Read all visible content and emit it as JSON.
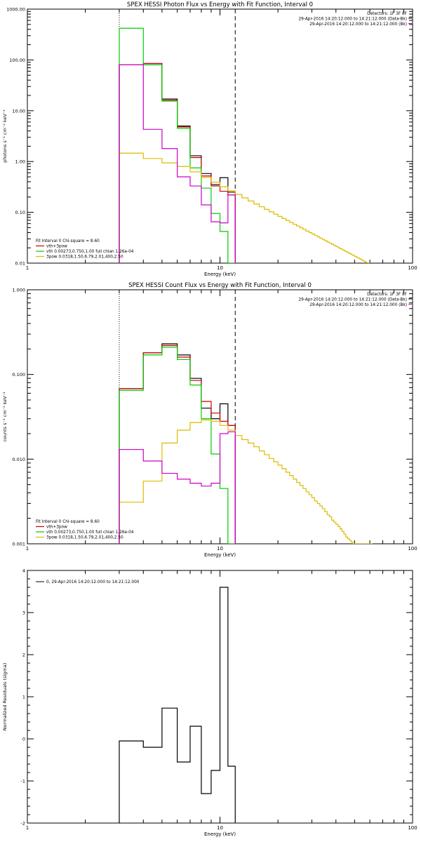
{
  "charts": [
    {
      "type": "line",
      "title": "SPEX HESSI Photon Flux vs Energy with Fit Function, Interval 0",
      "xlabel": "Energy (keV)",
      "ylabel": "photons s⁻¹ cm⁻² keV⁻¹",
      "xscale": "log",
      "yscale": "log",
      "xlim": [
        1,
        100
      ],
      "ylim": [
        0.01,
        1000
      ],
      "xticks": [
        1,
        10,
        100
      ],
      "xtick_labels": [
        "1",
        "10",
        "100"
      ],
      "yticks": [
        0.01,
        0.1,
        1,
        10,
        100,
        1000
      ],
      "ytick_labels": [
        "0.01",
        "0.10",
        "1.00",
        "10.00",
        "100.00",
        "1000.00"
      ],
      "vlines": [
        {
          "x": 3.0,
          "style": "dotted",
          "color": "#000000"
        },
        {
          "x": 12.0,
          "style": "dashed",
          "color": "#000000"
        }
      ],
      "header": [
        "Detectors: 1F 3F 8F",
        "29-Apr-2016 14:20:12.000 to 14:21:12.000 (Data-Bk)",
        "29-Apr-2016 14:20:12.000 to 14:21:12.000 (Bk)"
      ],
      "legend_title": "Fit Interval 0   Chi-square = 8.60",
      "legend": [
        {
          "label": "vth+3pow",
          "color": "#cc0000"
        },
        {
          "label": "vth 0.00273,0.750,1.00  full chian 1.26e-04",
          "color": "#00cc00"
        },
        {
          "label": "3pow 0.0318,1.50,6.79,2.01,400,2.50",
          "color": "#ddbb00"
        }
      ],
      "series": [
        {
          "name": "data",
          "color": "#000000",
          "type": "step",
          "edges": [
            3,
            4,
            5,
            6,
            7,
            8,
            9,
            10,
            11,
            12
          ],
          "values": [
            80,
            85,
            17,
            5,
            1.3,
            0.58,
            0.35,
            0.48,
            0.25
          ]
        },
        {
          "name": "vth+3pow",
          "color": "#cc0000",
          "type": "step",
          "edges": [
            3,
            4,
            5,
            6,
            7,
            8,
            9,
            10,
            11,
            12
          ],
          "values": [
            80,
            85,
            16,
            4.8,
            1.2,
            0.52,
            0.33,
            0.26,
            0.22
          ]
        },
        {
          "name": "vth",
          "color": "#00cc00",
          "type": "step",
          "edges": [
            3,
            4,
            5,
            6,
            7,
            8,
            9,
            10,
            11,
            12
          ],
          "values": [
            420,
            80,
            15.5,
            4.5,
            0.75,
            0.3,
            0.095,
            0.042,
            0.01
          ]
        },
        {
          "name": "3pow",
          "color": "#ddbb00",
          "type": "step",
          "edges": [
            3,
            4,
            5,
            6,
            7,
            8,
            9,
            10,
            11,
            12,
            13,
            14,
            15,
            16,
            17,
            18,
            19,
            20,
            21,
            22,
            23,
            24,
            25,
            26,
            27,
            28,
            29,
            30,
            31,
            32,
            33,
            34,
            35,
            36,
            37,
            38,
            39,
            40,
            41,
            42,
            43,
            44,
            45,
            46,
            47,
            48,
            49,
            50,
            51,
            52,
            53,
            54,
            55,
            56,
            57,
            58,
            59,
            60
          ],
          "power": {
            "start_x": 3,
            "start_y": 1.7,
            "index": 1.5,
            "break_x": 6.79,
            "index2": 2.01,
            "end_x": 60
          },
          "values": []
        },
        {
          "name": "background",
          "color": "#cc00cc",
          "type": "step",
          "edges": [
            3,
            4,
            5,
            6,
            7,
            8,
            9,
            10,
            11,
            12
          ],
          "values": [
            80,
            4.3,
            1.8,
            0.5,
            0.33,
            0.14,
            0.065,
            0.062,
            0.22
          ]
        }
      ]
    },
    {
      "type": "line",
      "title": "SPEX HESSI Count Flux vs Energy with Fit Function, Interval 0",
      "xlabel": "Energy (keV)",
      "ylabel": "counts s⁻¹ cm⁻² keV⁻¹",
      "xscale": "log",
      "yscale": "log",
      "xlim": [
        1,
        100
      ],
      "ylim": [
        0.001,
        1
      ],
      "xticks": [
        1,
        10,
        100
      ],
      "xtick_labels": [
        "1",
        "10",
        "100"
      ],
      "yticks": [
        0.001,
        0.01,
        0.1,
        1
      ],
      "ytick_labels": [
        "0.001",
        "0.010",
        "0.100",
        "1.000"
      ],
      "vlines": [
        {
          "x": 3.0,
          "style": "dotted",
          "color": "#000000"
        },
        {
          "x": 12.0,
          "style": "dashed",
          "color": "#000000"
        }
      ],
      "header": [
        "Detectors: 1F 3F 8F",
        "29-Apr-2016 14:20:12.000 to 14:21:12.000 (Data-Bk)",
        "29-Apr-2016 14:20:12.000 to 14:21:12.000 (Bk)"
      ],
      "legend_title": "Fit Interval 0   Chi-square = 8.60",
      "legend": [
        {
          "label": "vth+3pow",
          "color": "#cc0000"
        },
        {
          "label": "vth 0.00273,0.750,1.00  full chian 1.26e-04",
          "color": "#00cc00"
        },
        {
          "label": "3pow 0.0318,1.50,6.79,2.01,400,2.50",
          "color": "#ddbb00"
        }
      ],
      "series": [
        {
          "name": "data",
          "color": "#000000",
          "type": "step",
          "edges": [
            3,
            4,
            5,
            6,
            7,
            8,
            9,
            10,
            11,
            12
          ],
          "values": [
            0.068,
            0.18,
            0.23,
            0.17,
            0.09,
            0.04,
            0.03,
            0.045,
            0.025
          ]
        },
        {
          "name": "vth+3pow",
          "color": "#cc0000",
          "type": "step",
          "edges": [
            3,
            4,
            5,
            6,
            7,
            8,
            9,
            10,
            11,
            12
          ],
          "values": [
            0.068,
            0.18,
            0.22,
            0.16,
            0.085,
            0.048,
            0.035,
            0.028,
            0.025
          ]
        },
        {
          "name": "vth",
          "color": "#00cc00",
          "type": "step",
          "edges": [
            3,
            4,
            5,
            6,
            7,
            8,
            9,
            10,
            11,
            12
          ],
          "values": [
            0.065,
            0.17,
            0.21,
            0.15,
            0.075,
            0.03,
            0.0115,
            0.0045,
            0.001
          ]
        },
        {
          "name": "3pow",
          "color": "#ddbb00",
          "type": "step",
          "edges": [
            3,
            4,
            5,
            6,
            7,
            8,
            9,
            10,
            11,
            12,
            13,
            14,
            15,
            16,
            17,
            18,
            19,
            20,
            21,
            22,
            23,
            24,
            25,
            26,
            27,
            28,
            29,
            30,
            31,
            32,
            33,
            34,
            35,
            36,
            37,
            38,
            39,
            40,
            41,
            42,
            43,
            44,
            45,
            46,
            47,
            48,
            49,
            50,
            51,
            52,
            53,
            54,
            55,
            56,
            57,
            58,
            59,
            60,
            62
          ],
          "values": [
            0.0031,
            0.0055,
            0.0155,
            0.022,
            0.027,
            0.029,
            0.028,
            0.025,
            0.022,
            0.019,
            0.017,
            0.0155,
            0.014,
            0.0125,
            0.0113,
            0.0102,
            0.0093,
            0.0085,
            0.0077,
            0.007,
            0.0064,
            0.0058,
            0.0053,
            0.0049,
            0.0045,
            0.0041,
            0.0038,
            0.0035,
            0.0032,
            0.003,
            0.0028,
            0.0026,
            0.0024,
            0.0022,
            0.0021,
            0.0019,
            0.0018,
            0.0017,
            0.0016,
            0.0015,
            0.0014,
            0.0013,
            0.0012,
            0.00115,
            0.0011,
            0.00105,
            0.001,
            0.001,
            0.001,
            0.001,
            0.001,
            0.001,
            0.001,
            0.001,
            0.001,
            0.001,
            0.001,
            0.001
          ]
        },
        {
          "name": "background",
          "color": "#cc00cc",
          "type": "step",
          "edges": [
            3,
            4,
            5,
            6,
            7,
            8,
            9,
            10,
            11,
            12
          ],
          "values": [
            0.013,
            0.0095,
            0.0068,
            0.0058,
            0.0052,
            0.0048,
            0.0052,
            0.02,
            0.021
          ]
        }
      ]
    },
    {
      "type": "line",
      "title": "",
      "xlabel": "Energy (keV)",
      "ylabel": "Normalized Residuals (sigma)",
      "xscale": "log",
      "yscale": "linear",
      "xlim": [
        1,
        100
      ],
      "ylim": [
        -2,
        4
      ],
      "xticks": [
        1,
        10,
        100
      ],
      "xtick_labels": [
        "1",
        "10",
        "100"
      ],
      "yticks": [
        -2,
        -1,
        0,
        1,
        2,
        3,
        4
      ],
      "ytick_labels": [
        "-2",
        "-1",
        "0",
        "1",
        "2",
        "3",
        "4"
      ],
      "legend": [
        {
          "label": "0, 29-Apr-2016 14:20:12.000 to 14:21:12.000",
          "color": "#000000"
        }
      ],
      "series": [
        {
          "name": "residuals",
          "color": "#000000",
          "type": "step",
          "edges": [
            3,
            4,
            5,
            6,
            7,
            8,
            9,
            10,
            11,
            12
          ],
          "values": [
            -0.05,
            -0.2,
            0.73,
            -0.55,
            0.3,
            -1.3,
            -0.75,
            3.6,
            -0.65
          ]
        }
      ]
    }
  ]
}
